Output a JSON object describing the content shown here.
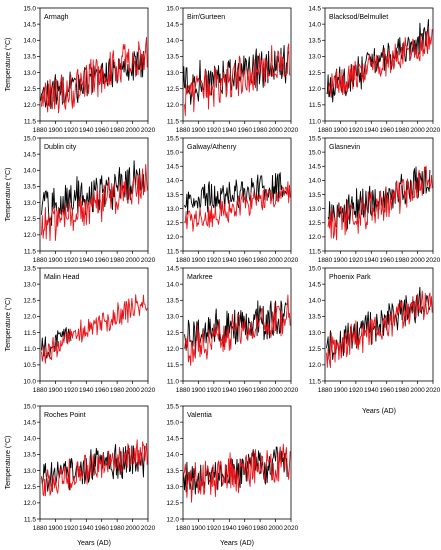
{
  "figure": {
    "ylabel": "Temperature (°C)",
    "xlabel": "Years (AD)"
  },
  "colors": {
    "series_a": "#000000",
    "series_b": "#e8141a",
    "frame": "#000000"
  },
  "chart_data": [
    {
      "type": "line",
      "title": "Armagh",
      "xlim": [
        1880,
        2020
      ],
      "ylim": [
        11.5,
        15.0
      ],
      "xticks": [
        "1880",
        "1900",
        "1920",
        "1940",
        "1960",
        "1980",
        "2000",
        "2020"
      ],
      "yticks": [
        "11.5",
        "12.0",
        "12.5",
        "13.0",
        "13.5",
        "14.0",
        "14.5",
        "15.0"
      ],
      "series": [
        {
          "start": 1880,
          "end": 2017,
          "mean0": 12.2,
          "mean1": 13.4,
          "amp": 0.45
        },
        {
          "start": 1882,
          "end": 2019,
          "mean0": 12.1,
          "mean1": 13.6,
          "amp": 0.55
        }
      ],
      "grid": false
    },
    {
      "type": "line",
      "title": "Birr/Gurteen",
      "xlim": [
        1880,
        2020
      ],
      "ylim": [
        11.5,
        15.0
      ],
      "xticks": [
        "1880",
        "1900",
        "1920",
        "1940",
        "1960",
        "1980",
        "2000",
        "2020"
      ],
      "yticks": [
        "11.5",
        "12.0",
        "12.5",
        "13.0",
        "13.5",
        "14.0",
        "14.5",
        "15.0"
      ],
      "series": [
        {
          "start": 1880,
          "end": 2017,
          "mean0": 12.6,
          "mean1": 13.3,
          "amp": 0.55
        },
        {
          "start": 1882,
          "end": 2019,
          "mean0": 12.2,
          "mean1": 13.4,
          "amp": 0.55
        }
      ],
      "grid": false
    },
    {
      "type": "line",
      "title": "Blacksod/Belmullet",
      "xlim": [
        1880,
        2020
      ],
      "ylim": [
        11.0,
        14.5
      ],
      "xticks": [
        "1880",
        "1900",
        "1920",
        "1940",
        "1960",
        "1980",
        "2000",
        "2020"
      ],
      "yticks": [
        "11.0",
        "11.5",
        "12.0",
        "12.5",
        "13.0",
        "13.5",
        "14.0",
        "14.5"
      ],
      "series": [
        {
          "start": 1882,
          "end": 2015,
          "mean0": 12.0,
          "mean1": 13.6,
          "amp": 0.45
        },
        {
          "start": 1884,
          "end": 2019,
          "mean0": 12.0,
          "mean1": 13.5,
          "amp": 0.45
        }
      ],
      "grid": false
    },
    {
      "type": "line",
      "title": "Dublin city",
      "xlim": [
        1880,
        2020
      ],
      "ylim": [
        11.5,
        15.0
      ],
      "xticks": [
        "1880",
        "1900",
        "1920",
        "1940",
        "1960",
        "1980",
        "2000",
        "2020"
      ],
      "yticks": [
        "11.5",
        "12.0",
        "12.5",
        "13.0",
        "13.5",
        "14.0",
        "14.5",
        "15.0"
      ],
      "series": [
        {
          "start": 1882,
          "end": 2015,
          "mean0": 12.8,
          "mean1": 13.7,
          "amp": 0.55
        },
        {
          "start": 1882,
          "end": 2019,
          "mean0": 12.2,
          "mean1": 13.6,
          "amp": 0.5
        }
      ],
      "grid": false
    },
    {
      "type": "line",
      "title": "Galway/Athenry",
      "xlim": [
        1880,
        2020
      ],
      "ylim": [
        11.5,
        15.5
      ],
      "xticks": [
        "1880",
        "1900",
        "1920",
        "1940",
        "1960",
        "1980",
        "2000",
        "2020"
      ],
      "yticks": [
        "11.5",
        "12.0",
        "12.5",
        "13.0",
        "13.5",
        "14.0",
        "14.5",
        "15.0",
        "15.5"
      ],
      "series": [
        {
          "start": 1882,
          "end": 2015,
          "mean0": 13.3,
          "mean1": 13.8,
          "amp": 0.45
        },
        {
          "start": 1882,
          "end": 2019,
          "mean0": 12.5,
          "mean1": 13.6,
          "amp": 0.4
        }
      ],
      "grid": false
    },
    {
      "type": "line",
      "title": "Glasnevin",
      "xlim": [
        1880,
        2020
      ],
      "ylim": [
        11.5,
        15.5
      ],
      "xticks": [
        "1880",
        "1900",
        "1920",
        "1940",
        "1960",
        "1980",
        "2000",
        "2020"
      ],
      "yticks": [
        "11.5",
        "12.0",
        "12.5",
        "13.0",
        "13.5",
        "14.0",
        "14.5",
        "15.0",
        "15.5"
      ],
      "series": [
        {
          "start": 1884,
          "end": 2016,
          "mean0": 12.6,
          "mean1": 14.1,
          "amp": 0.55
        },
        {
          "start": 1884,
          "end": 2019,
          "mean0": 12.3,
          "mean1": 14.0,
          "amp": 0.55
        }
      ],
      "grid": false
    },
    {
      "type": "line",
      "title": "Malin Head",
      "xlim": [
        1880,
        2020
      ],
      "ylim": [
        10.0,
        13.5
      ],
      "xticks": [
        "1880",
        "1900",
        "1920",
        "1940",
        "1960",
        "1980",
        "2000",
        "2020"
      ],
      "yticks": [
        "10.0",
        "10.5",
        "11.0",
        "11.5",
        "12.0",
        "12.5",
        "13.0",
        "13.5"
      ],
      "series": [
        {
          "start": 1882,
          "end": 1920,
          "mean0": 10.9,
          "mean1": 11.4,
          "amp": 0.35
        },
        {
          "start": 1882,
          "end": 2019,
          "mean0": 10.9,
          "mean1": 12.5,
          "amp": 0.35
        }
      ],
      "grid": false
    },
    {
      "type": "line",
      "title": "Markree",
      "xlim": [
        1880,
        2020
      ],
      "ylim": [
        11.0,
        14.5
      ],
      "xticks": [
        "1880",
        "1900",
        "1920",
        "1940",
        "1960",
        "1980",
        "2000",
        "2020"
      ],
      "yticks": [
        "11.0",
        "11.5",
        "12.0",
        "12.5",
        "13.0",
        "13.5",
        "14.0",
        "14.5"
      ],
      "series": [
        {
          "start": 1882,
          "end": 2014,
          "mean0": 12.4,
          "mean1": 13.0,
          "amp": 0.55
        },
        {
          "start": 1882,
          "end": 2019,
          "mean0": 12.0,
          "mean1": 13.1,
          "amp": 0.5
        }
      ],
      "grid": false
    },
    {
      "type": "line",
      "title": "Phoenix Park",
      "xlim": [
        1880,
        2020
      ],
      "ylim": [
        11.5,
        15.0
      ],
      "xticks": [
        "1880",
        "1900",
        "1920",
        "1940",
        "1960",
        "1980",
        "2000",
        "2020"
      ],
      "yticks": [
        "11.5",
        "12.0",
        "12.5",
        "13.0",
        "13.5",
        "14.0",
        "14.5",
        "15.0"
      ],
      "series": [
        {
          "start": 1882,
          "end": 2016,
          "mean0": 12.5,
          "mean1": 14.0,
          "amp": 0.45
        },
        {
          "start": 1882,
          "end": 2019,
          "mean0": 12.4,
          "mean1": 14.0,
          "amp": 0.45
        }
      ],
      "grid": false
    },
    {
      "type": "line",
      "title": "Roches Point",
      "xlim": [
        1880,
        2020
      ],
      "ylim": [
        11.5,
        15.0
      ],
      "xticks": [
        "1880",
        "1900",
        "1920",
        "1940",
        "1960",
        "1980",
        "2000",
        "2020"
      ],
      "yticks": [
        "11.5",
        "12.0",
        "12.5",
        "13.0",
        "13.5",
        "14.0",
        "14.5",
        "15.0"
      ],
      "series": [
        {
          "start": 1882,
          "end": 2016,
          "mean0": 12.8,
          "mean1": 13.4,
          "amp": 0.5
        },
        {
          "start": 1882,
          "end": 2019,
          "mean0": 12.6,
          "mean1": 13.6,
          "amp": 0.45
        }
      ],
      "grid": false
    },
    {
      "type": "line",
      "title": "Valentia",
      "xlim": [
        1880,
        2020
      ],
      "ylim": [
        12.0,
        15.5
      ],
      "xticks": [
        "1880",
        "1900",
        "1920",
        "1940",
        "1960",
        "1980",
        "2000",
        "2020"
      ],
      "yticks": [
        "12.0",
        "12.5",
        "13.0",
        "13.5",
        "14.0",
        "14.5",
        "15.0",
        "15.5"
      ],
      "series": [
        {
          "start": 1880,
          "end": 2015,
          "mean0": 13.2,
          "mean1": 13.8,
          "amp": 0.5
        },
        {
          "start": 1880,
          "end": 2019,
          "mean0": 13.0,
          "mean1": 13.8,
          "amp": 0.55
        }
      ],
      "grid": false
    }
  ]
}
